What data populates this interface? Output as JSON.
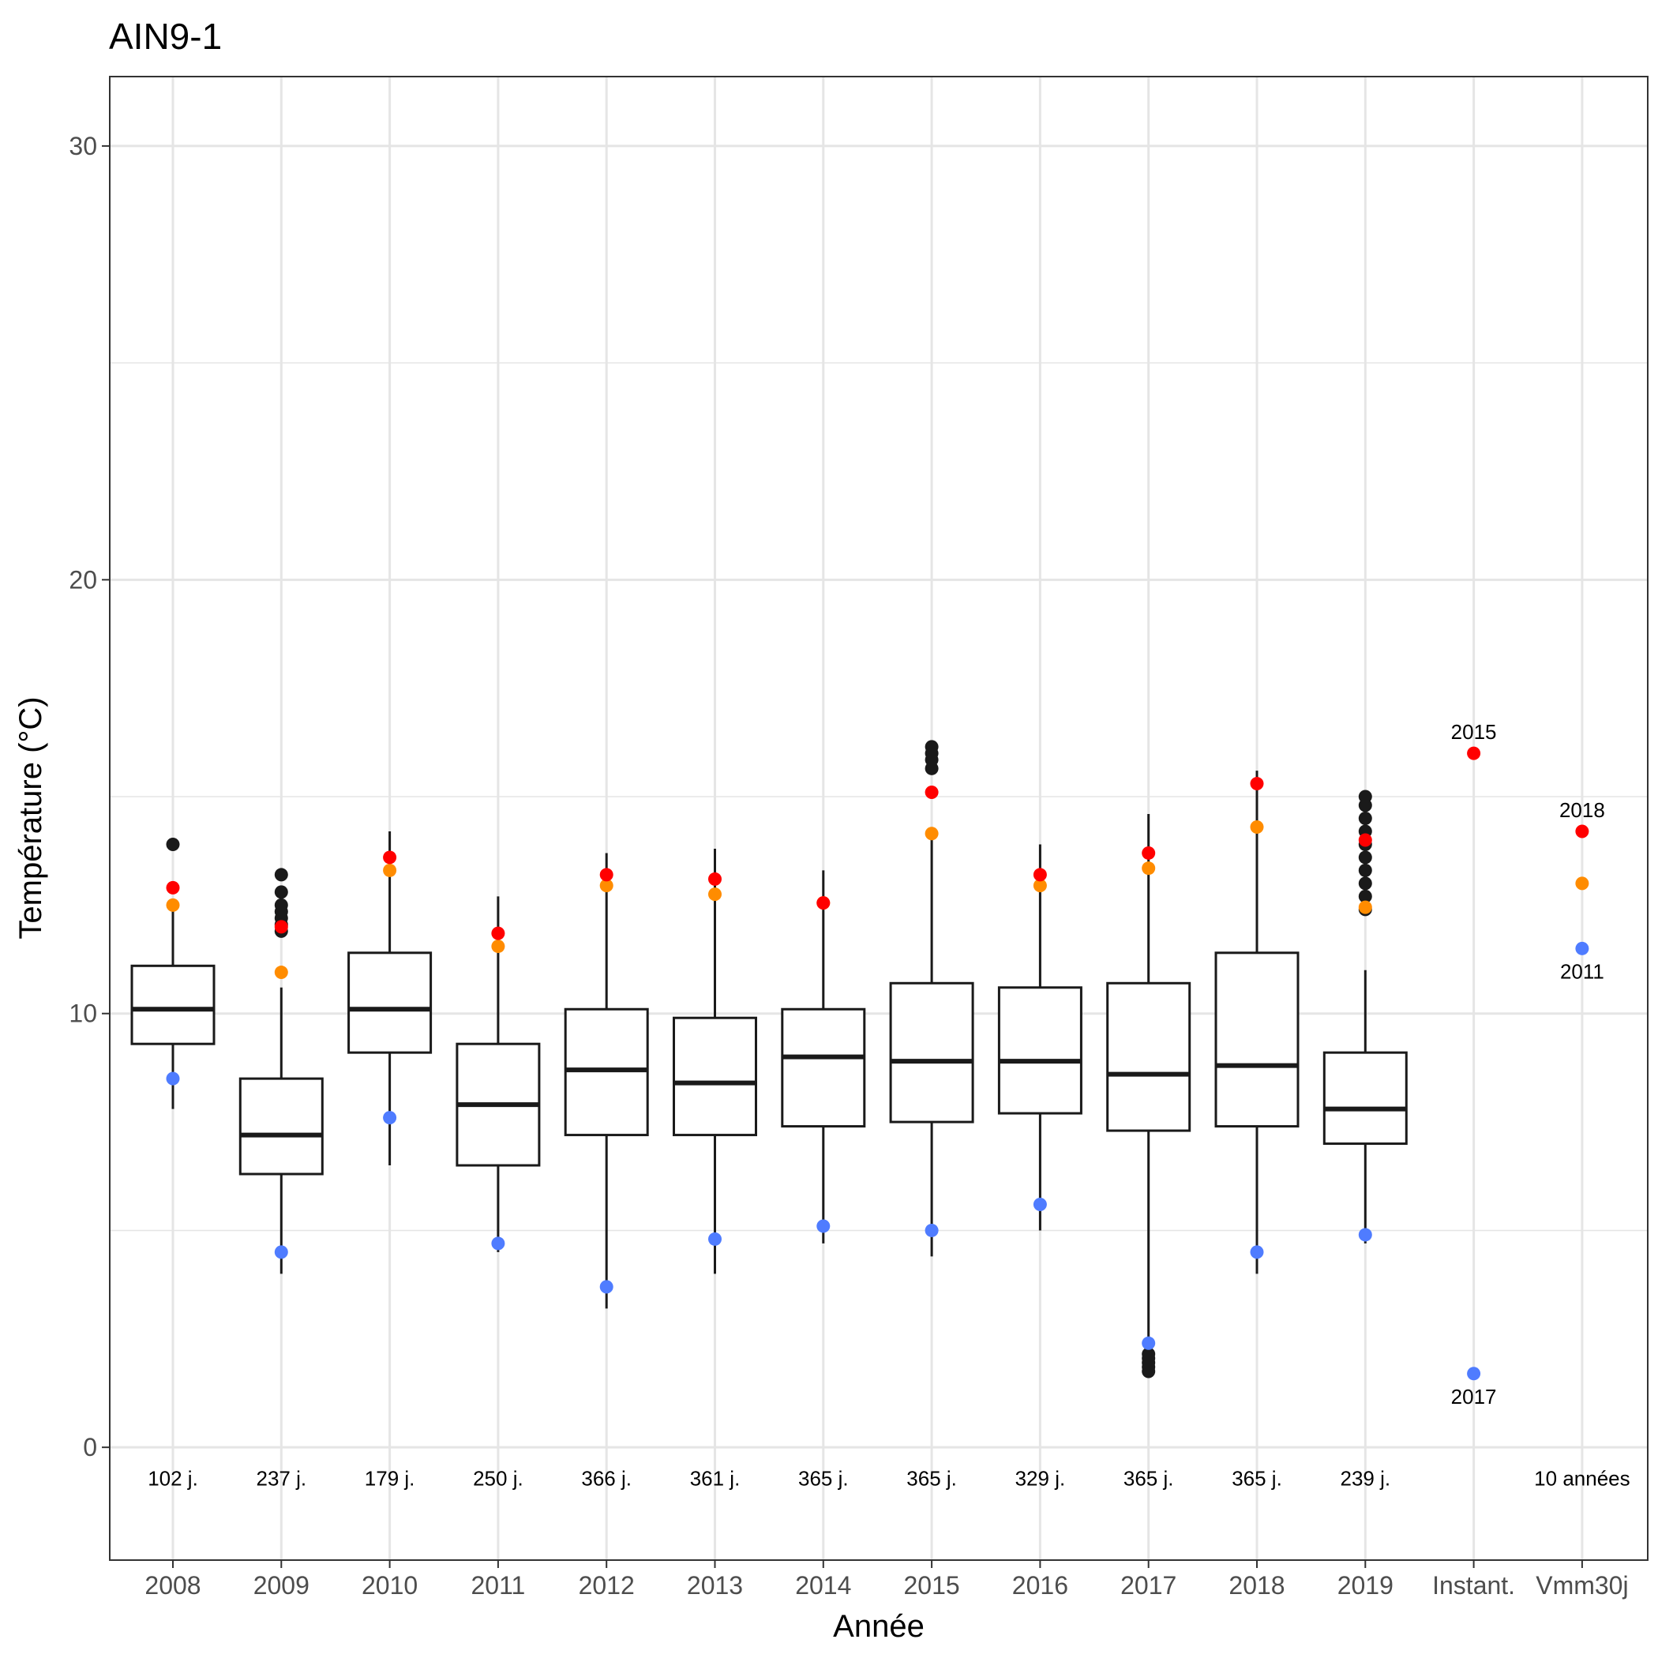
{
  "chart_data": {
    "type": "boxplot",
    "title": "AIN9-1",
    "xlabel": "Année",
    "ylabel": "Température (°C)",
    "ylim": [
      -2.6,
      31.6
    ],
    "yticks": [
      0,
      10,
      20,
      30
    ],
    "grid": true,
    "colors": {
      "max": "#ff0000",
      "mean_max": "#ff8c00",
      "min": "#4f7cff",
      "box": "#1a1a1a",
      "outlier": "#1a1a1a",
      "grid": "#e5e5e5"
    },
    "categories": [
      "2008",
      "2009",
      "2010",
      "2011",
      "2012",
      "2013",
      "2014",
      "2015",
      "2016",
      "2017",
      "2018",
      "2019",
      "Instant.",
      "Vmm30j"
    ],
    "boxes": [
      {
        "year": "2008",
        "days": "102 j.",
        "low": 7.8,
        "q1": 9.3,
        "median": 10.1,
        "q3": 11.1,
        "high": 12.6,
        "max": 12.9,
        "mean_max": 12.5,
        "min": 8.5,
        "outliers": [
          13.9
        ]
      },
      {
        "year": "2009",
        "days": "237 j.",
        "low": 4.0,
        "q1": 6.3,
        "median": 7.2,
        "q3": 8.5,
        "high": 10.6,
        "max": 12.0,
        "mean_max": 10.95,
        "min": 4.5,
        "outliers": [
          11.9,
          12.05,
          12.2,
          12.35,
          12.5,
          12.8,
          13.2
        ]
      },
      {
        "year": "2010",
        "days": "179 j.",
        "low": 6.5,
        "q1": 9.1,
        "median": 10.1,
        "q3": 11.4,
        "high": 14.2,
        "max": 13.6,
        "mean_max": 13.3,
        "min": 7.6,
        "outliers": []
      },
      {
        "year": "2011",
        "days": "250 j.",
        "low": 4.5,
        "q1": 6.5,
        "median": 7.9,
        "q3": 9.3,
        "high": 12.7,
        "max": 11.85,
        "mean_max": 11.55,
        "min": 4.7,
        "outliers": []
      },
      {
        "year": "2012",
        "days": "366 j.",
        "low": 3.2,
        "q1": 7.2,
        "median": 8.7,
        "q3": 10.1,
        "high": 13.7,
        "max": 13.2,
        "mean_max": 12.95,
        "min": 3.7,
        "outliers": []
      },
      {
        "year": "2013",
        "days": "361 j.",
        "low": 4.0,
        "q1": 7.2,
        "median": 8.4,
        "q3": 9.9,
        "high": 13.8,
        "max": 13.1,
        "mean_max": 12.75,
        "min": 4.8,
        "outliers": []
      },
      {
        "year": "2014",
        "days": "365 j.",
        "low": 4.7,
        "q1": 7.4,
        "median": 9.0,
        "q3": 10.1,
        "high": 13.3,
        "max": 12.55,
        "mean_max": 12.55,
        "min": 5.1,
        "outliers": []
      },
      {
        "year": "2015",
        "days": "365 j.",
        "low": 4.4,
        "q1": 7.5,
        "median": 8.9,
        "q3": 10.7,
        "high": 14.1,
        "max": 15.1,
        "mean_max": 14.15,
        "min": 5.0,
        "outliers": [
          15.65,
          15.85,
          16.0,
          16.15
        ]
      },
      {
        "year": "2016",
        "days": "329 j.",
        "low": 5.0,
        "q1": 7.7,
        "median": 8.9,
        "q3": 10.6,
        "high": 13.9,
        "max": 13.2,
        "mean_max": 12.95,
        "min": 5.6,
        "outliers": []
      },
      {
        "year": "2017",
        "days": "365 j.",
        "low": 2.0,
        "q1": 7.3,
        "median": 8.6,
        "q3": 10.7,
        "high": 14.6,
        "max": 13.7,
        "mean_max": 13.35,
        "min": 2.4,
        "outliers": [
          1.75,
          1.85,
          1.95,
          2.05,
          2.15
        ]
      },
      {
        "year": "2018",
        "days": "365 j.",
        "low": 4.0,
        "q1": 7.4,
        "median": 8.8,
        "q3": 11.4,
        "high": 15.6,
        "max": 15.3,
        "mean_max": 14.3,
        "min": 4.5,
        "outliers": []
      },
      {
        "year": "2019",
        "days": "239 j.",
        "low": 4.7,
        "q1": 7.0,
        "median": 7.8,
        "q3": 9.1,
        "high": 11.0,
        "max": 14.0,
        "mean_max": 12.45,
        "min": 4.9,
        "outliers": [
          12.4,
          12.7,
          13.0,
          13.3,
          13.6,
          13.9,
          14.2,
          14.5,
          14.8,
          15.0
        ]
      }
    ],
    "summary": [
      {
        "category": "Instant.",
        "days": "",
        "max": 16.0,
        "max_label": "2015",
        "min": 1.7,
        "min_label": "2017"
      },
      {
        "category": "Vmm30j",
        "days": "10 années",
        "max": 14.2,
        "max_label": "2018",
        "mean_max": 13.0,
        "min": 11.5,
        "min_label": "2011"
      }
    ]
  }
}
